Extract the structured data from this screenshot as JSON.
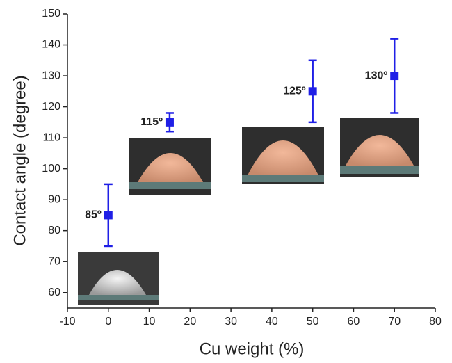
{
  "chart_data": {
    "type": "scatter",
    "xlabel": "Cu weight (%)",
    "ylabel": "Contact angle (degree)",
    "x": [
      0,
      15,
      50,
      70
    ],
    "series": [
      {
        "color": "#1f1fe6",
        "values": [
          85,
          115,
          125,
          130
        ],
        "errors": [
          10,
          3,
          10,
          12
        ],
        "value_labels": [
          "85º",
          "115º",
          "125º",
          "130º"
        ]
      }
    ],
    "xlim": [
      -10,
      80
    ],
    "xticks": [
      -10,
      0,
      10,
      20,
      30,
      40,
      50,
      60,
      70,
      80
    ],
    "ylim": [
      55,
      150
    ],
    "yticks": [
      60,
      70,
      80,
      90,
      100,
      110,
      120,
      130,
      140,
      150
    ]
  }
}
